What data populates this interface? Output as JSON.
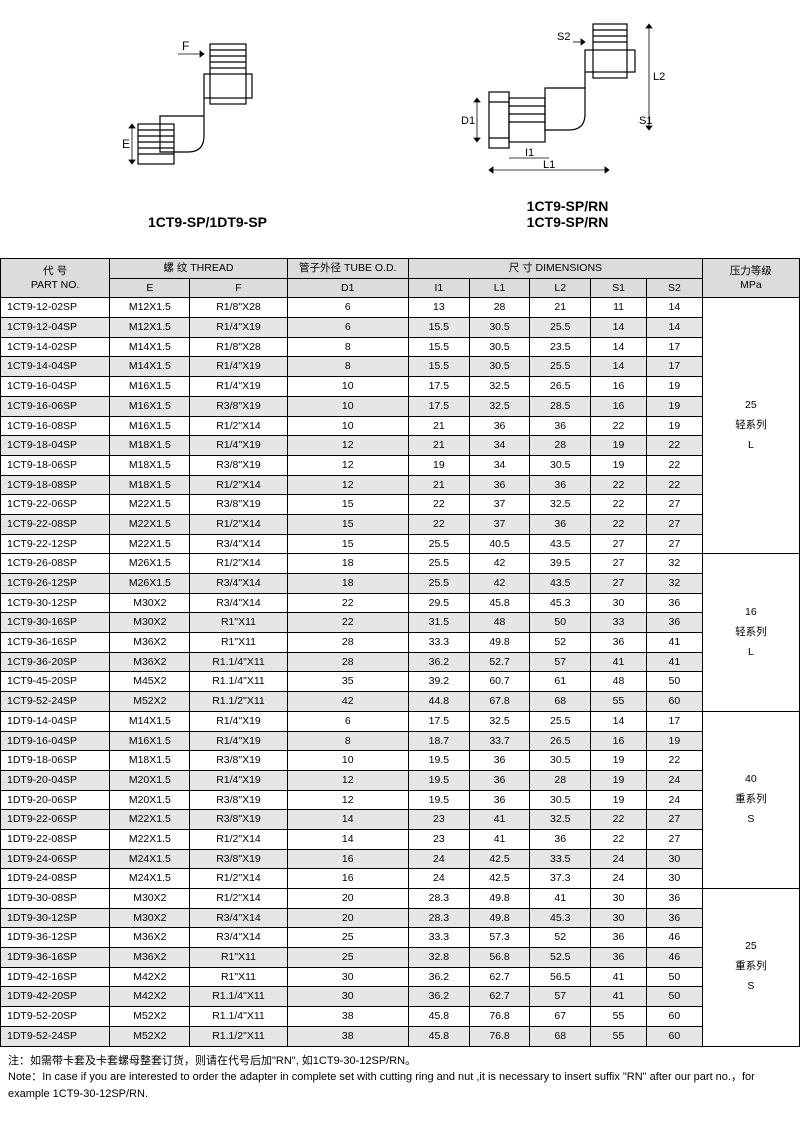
{
  "diagrams": {
    "left": {
      "label": "1CT9-SP/1DT9-SP",
      "dim_E": "E",
      "dim_F": "F"
    },
    "right": {
      "label1": "1CT9-SP/RN",
      "label2": "1CT9-SP/RN",
      "dim_D1": "D1",
      "dim_L1": "L1",
      "dim_L2": "L2",
      "dim_I1": "I1",
      "dim_S1": "S1",
      "dim_S2": "S2"
    }
  },
  "headers": {
    "partno_cn": "代 号",
    "partno_en": "PART NO.",
    "thread_cn": "螺 纹  THREAD",
    "tube_cn": "管子外径 TUBE O.D.",
    "dims_cn": "尺 寸   DIMENSIONS",
    "mpa_cn": "压力等级",
    "mpa_en": "MPa",
    "E": "E",
    "F": "F",
    "D1": "D1",
    "I1": "I1",
    "L1": "L1",
    "L2": "L2",
    "S1": "S1",
    "S2": "S2"
  },
  "sections": [
    {
      "mpa": "25",
      "series_cn": "轻系列",
      "series_en": "L",
      "rows": [
        [
          "1CT9-12-02SP",
          "M12X1.5",
          "R1/8\"X28",
          "6",
          "13",
          "28",
          "21",
          "11",
          "14"
        ],
        [
          "1CT9-12-04SP",
          "M12X1.5",
          "R1/4\"X19",
          "6",
          "15.5",
          "30.5",
          "25.5",
          "14",
          "14"
        ],
        [
          "1CT9-14-02SP",
          "M14X1.5",
          "R1/8\"X28",
          "8",
          "15.5",
          "30.5",
          "23.5",
          "14",
          "17"
        ],
        [
          "1CT9-14-04SP",
          "M14X1.5",
          "R1/4\"X19",
          "8",
          "15.5",
          "30.5",
          "25.5",
          "14",
          "17"
        ],
        [
          "1CT9-16-04SP",
          "M16X1.5",
          "R1/4\"X19",
          "10",
          "17.5",
          "32.5",
          "26.5",
          "16",
          "19"
        ],
        [
          "1CT9-16-06SP",
          "M16X1.5",
          "R3/8\"X19",
          "10",
          "17.5",
          "32.5",
          "28.5",
          "16",
          "19"
        ],
        [
          "1CT9-16-08SP",
          "M16X1.5",
          "R1/2\"X14",
          "10",
          "21",
          "36",
          "36",
          "22",
          "19"
        ],
        [
          "1CT9-18-04SP",
          "M18X1.5",
          "R1/4\"X19",
          "12",
          "21",
          "34",
          "28",
          "19",
          "22"
        ],
        [
          "1CT9-18-06SP",
          "M18X1.5",
          "R3/8\"X19",
          "12",
          "19",
          "34",
          "30.5",
          "19",
          "22"
        ],
        [
          "1CT9-18-08SP",
          "M18X1.5",
          "R1/2\"X14",
          "12",
          "21",
          "36",
          "36",
          "22",
          "22"
        ],
        [
          "1CT9-22-06SP",
          "M22X1.5",
          "R3/8\"X19",
          "15",
          "22",
          "37",
          "32.5",
          "22",
          "27"
        ],
        [
          "1CT9-22-08SP",
          "M22X1.5",
          "R1/2\"X14",
          "15",
          "22",
          "37",
          "36",
          "22",
          "27"
        ],
        [
          "1CT9-22-12SP",
          "M22X1.5",
          "R3/4\"X14",
          "15",
          "25.5",
          "40.5",
          "43.5",
          "27",
          "27"
        ]
      ]
    },
    {
      "mpa": "16",
      "series_cn": "轻系列",
      "series_en": "L",
      "rows": [
        [
          "1CT9-26-08SP",
          "M26X1.5",
          "R1/2\"X14",
          "18",
          "25.5",
          "42",
          "39.5",
          "27",
          "32"
        ],
        [
          "1CT9-26-12SP",
          "M26X1.5",
          "R3/4\"X14",
          "18",
          "25.5",
          "42",
          "43.5",
          "27",
          "32"
        ],
        [
          "1CT9-30-12SP",
          "M30X2",
          "R3/4\"X14",
          "22",
          "29.5",
          "45.8",
          "45.3",
          "30",
          "36"
        ],
        [
          "1CT9-30-16SP",
          "M30X2",
          "R1\"X11",
          "22",
          "31.5",
          "48",
          "50",
          "33",
          "36"
        ],
        [
          "1CT9-36-16SP",
          "M36X2",
          "R1\"X11",
          "28",
          "33.3",
          "49.8",
          "52",
          "36",
          "41"
        ],
        [
          "1CT9-36-20SP",
          "M36X2",
          "R1.1/4\"X11",
          "28",
          "36.2",
          "52.7",
          "57",
          "41",
          "41"
        ],
        [
          "1CT9-45-20SP",
          "M45X2",
          "R1.1/4\"X11",
          "35",
          "39.2",
          "60.7",
          "61",
          "48",
          "50"
        ],
        [
          "1CT9-52-24SP",
          "M52X2",
          "R1.1/2\"X11",
          "42",
          "44.8",
          "67.8",
          "68",
          "55",
          "60"
        ]
      ]
    },
    {
      "mpa": "40",
      "series_cn": "重系列",
      "series_en": "S",
      "rows": [
        [
          "1DT9-14-04SP",
          "M14X1.5",
          "R1/4\"X19",
          "6",
          "17.5",
          "32.5",
          "25.5",
          "14",
          "17"
        ],
        [
          "1DT9-16-04SP",
          "M16X1.5",
          "R1/4\"X19",
          "8",
          "18.7",
          "33.7",
          "26.5",
          "16",
          "19"
        ],
        [
          "1DT9-18-06SP",
          "M18X1.5",
          "R3/8\"X19",
          "10",
          "19.5",
          "36",
          "30.5",
          "19",
          "22"
        ],
        [
          "1DT9-20-04SP",
          "M20X1.5",
          "R1/4\"X19",
          "12",
          "19.5",
          "36",
          "28",
          "19",
          "24"
        ],
        [
          "1DT9-20-06SP",
          "M20X1.5",
          "R3/8\"X19",
          "12",
          "19.5",
          "36",
          "30.5",
          "19",
          "24"
        ],
        [
          "1DT9-22-06SP",
          "M22X1.5",
          "R3/8\"X19",
          "14",
          "23",
          "41",
          "32.5",
          "22",
          "27"
        ],
        [
          "1DT9-22-08SP",
          "M22X1.5",
          "R1/2\"X14",
          "14",
          "23",
          "41",
          "36",
          "22",
          "27"
        ],
        [
          "1DT9-24-06SP",
          "M24X1.5",
          "R3/8\"X19",
          "16",
          "24",
          "42.5",
          "33.5",
          "24",
          "30"
        ],
        [
          "1DT9-24-08SP",
          "M24X1.5",
          "R1/2\"X14",
          "16",
          "24",
          "42.5",
          "37.3",
          "24",
          "30"
        ]
      ]
    },
    {
      "mpa": "25",
      "series_cn": "重系列",
      "series_en": "S",
      "rows": [
        [
          "1DT9-30-08SP",
          "M30X2",
          "R1/2\"X14",
          "20",
          "28.3",
          "49.8",
          "41",
          "30",
          "36"
        ],
        [
          "1DT9-30-12SP",
          "M30X2",
          "R3/4\"X14",
          "20",
          "28.3",
          "49.8",
          "45.3",
          "30",
          "36"
        ],
        [
          "1DT9-36-12SP",
          "M36X2",
          "R3/4\"X14",
          "25",
          "33.3",
          "57.3",
          "52",
          "36",
          "46"
        ],
        [
          "1DT9-36-16SP",
          "M36X2",
          "R1\"X11",
          "25",
          "32.8",
          "56.8",
          "52.5",
          "36",
          "46"
        ],
        [
          "1DT9-42-16SP",
          "M42X2",
          "R1\"X11",
          "30",
          "36.2",
          "62.7",
          "56.5",
          "41",
          "50"
        ],
        [
          "1DT9-42-20SP",
          "M42X2",
          "R1.1/4\"X11",
          "30",
          "36.2",
          "62.7",
          "57",
          "41",
          "50"
        ],
        [
          "1DT9-52-20SP",
          "M52X2",
          "R1.1/4\"X11",
          "38",
          "45.8",
          "76.8",
          "67",
          "55",
          "60"
        ],
        [
          "1DT9-52-24SP",
          "M52X2",
          "R1.1/2\"X11",
          "38",
          "45.8",
          "76.8",
          "68",
          "55",
          "60"
        ]
      ]
    }
  ],
  "note": {
    "cn": "注：如需带卡套及卡套螺母整套订货，则请在代号后加\"RN\", 如1CT9-30-12SP/RN。",
    "en": "Note：In case if you are interested to order the adapter in complete set with cutting ring and nut ,it is necessary to insert suffix \"RN\" after our part no.，for example 1CT9-30-12SP/RN."
  },
  "style": {
    "stripe_bg": "#e6e6e6",
    "line_color": "#000000"
  }
}
